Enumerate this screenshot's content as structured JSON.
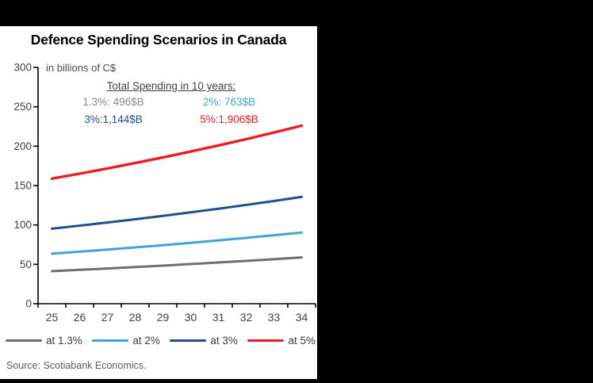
{
  "window": {
    "background_color": "#000000",
    "panel_color": "#ffffff"
  },
  "chart_data": {
    "type": "line",
    "title": "Defence Spending Scenarios in Canada",
    "unit_note": "in billions of C$",
    "xlabel": "",
    "ylabel": "",
    "x": [
      "25",
      "26",
      "27",
      "28",
      "29",
      "30",
      "31",
      "32",
      "33",
      "34"
    ],
    "ylim": [
      0,
      300
    ],
    "yticks": [
      0,
      50,
      100,
      150,
      200,
      250,
      300
    ],
    "grid": false,
    "legend_position": "bottom",
    "series": [
      {
        "name": "at 1.3%",
        "color": "#6D6E71",
        "values": [
          41.3,
          43.0,
          44.7,
          46.5,
          48.3,
          50.3,
          52.3,
          54.4,
          56.5,
          58.8
        ]
      },
      {
        "name": "at 2%",
        "color": "#44A1DB",
        "values": [
          63.6,
          66.1,
          68.7,
          71.5,
          74.3,
          77.3,
          80.4,
          83.6,
          87.0,
          90.4
        ]
      },
      {
        "name": "at 3%",
        "color": "#1D4F91",
        "values": [
          95.3,
          99.1,
          103.1,
          107.2,
          111.5,
          116.0,
          120.6,
          125.4,
          130.4,
          135.7
        ]
      },
      {
        "name": "at 5%",
        "color": "#ED1C24",
        "values": [
          158.8,
          165.1,
          171.7,
          178.6,
          185.7,
          193.2,
          200.9,
          208.9,
          217.3,
          226.0
        ]
      }
    ],
    "annotation": {
      "heading": "Total Spending in 10 years:",
      "items": [
        {
          "label": "1.3%: 496$B",
          "color": "#87898C"
        },
        {
          "label": "2%: 763$B",
          "color": "#44A1DB"
        },
        {
          "label": "3%:1,144$B",
          "color": "#1D4F91"
        },
        {
          "label": "5%:1,906$B",
          "color": "#ED1C24"
        }
      ]
    }
  },
  "footer": {
    "source": "Source: Scotiabank Economics."
  }
}
